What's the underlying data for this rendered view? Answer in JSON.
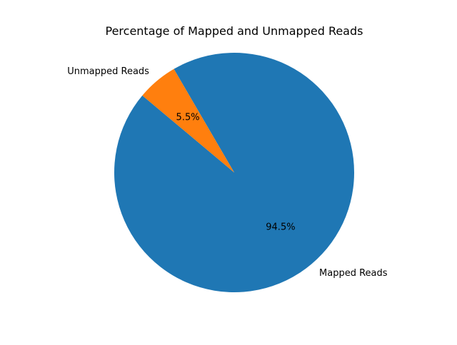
{
  "chart_data": {
    "type": "pie",
    "title": "Percentage of Mapped and Unmapped Reads",
    "slices": [
      {
        "label": "Mapped Reads",
        "value": 94.5,
        "pct_label": "94.5%",
        "color": "#1f77b4"
      },
      {
        "label": "Unmapped Reads",
        "value": 5.5,
        "pct_label": "5.5%",
        "color": "#ff7f0e"
      }
    ],
    "start_angle_deg": 140,
    "direction": "counterclockwise"
  }
}
